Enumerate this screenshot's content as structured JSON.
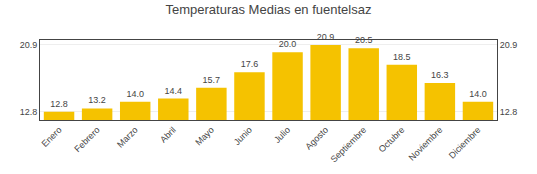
{
  "chart_data": {
    "type": "bar",
    "title": "Temperaturas Medias en fuentelsaz",
    "categories": [
      "Enero",
      "Febrero",
      "Marzo",
      "Abril",
      "Mayo",
      "Junio",
      "Julio",
      "Agosto",
      "Septiembre",
      "Octubre",
      "Noviembre",
      "Diciembre"
    ],
    "values": [
      12.8,
      13.2,
      14.0,
      14.4,
      15.7,
      17.6,
      20.0,
      20.9,
      20.5,
      18.5,
      16.3,
      14.0
    ],
    "value_labels": [
      "12.8",
      "13.2",
      "14.0",
      "14.4",
      "15.7",
      "17.6",
      "20.0",
      "20.9",
      "20.5",
      "18.5",
      "16.3",
      "14.0"
    ],
    "color": "#F5C200",
    "ylim": [
      11.8,
      21.5
    ],
    "yticks": [
      12.8,
      20.9
    ],
    "grid": true,
    "data_labels": true
  }
}
